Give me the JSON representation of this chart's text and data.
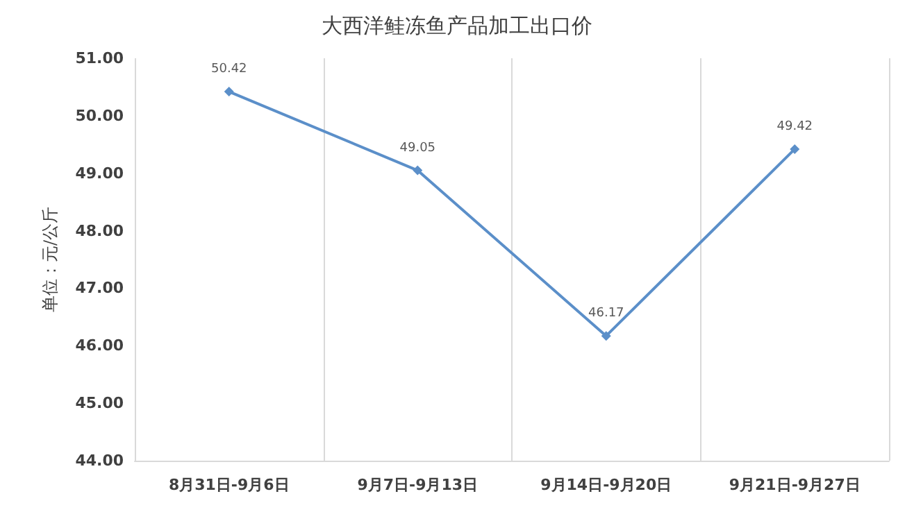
{
  "chart_data": {
    "type": "line",
    "title": "大西洋鲑冻鱼产品加工出口价",
    "ylabel": "单位：元/公斤",
    "categories": [
      "8月31日-9月6日",
      "9月7日-9月13日",
      "9月14日-9月20日",
      "9月21日-9月27日"
    ],
    "series": [
      {
        "color": "#5b8fc9",
        "values": [
          50.42,
          49.05,
          46.17,
          49.42
        ]
      }
    ],
    "ylim": [
      44,
      51
    ],
    "yticks": [
      {
        "value": 44,
        "label": "44.00"
      },
      {
        "value": 45,
        "label": "45.00"
      },
      {
        "value": 46,
        "label": "46.00"
      },
      {
        "value": 47,
        "label": "47.00"
      },
      {
        "value": 48,
        "label": "48.00"
      },
      {
        "value": 49,
        "label": "49.00"
      },
      {
        "value": 50,
        "label": "50.00"
      },
      {
        "value": 51,
        "label": "51.00"
      }
    ],
    "grid": "x",
    "marker": "diamond",
    "line_style": "solid",
    "data_labels": true
  }
}
